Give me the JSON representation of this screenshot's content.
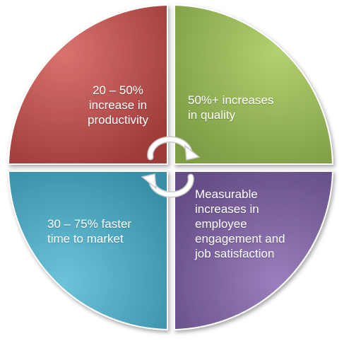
{
  "quadrants": [
    {
      "id": "productivity",
      "lines": [
        "20 – 50%",
        "increase in",
        "productivity"
      ],
      "color": "#C0504D",
      "color_light": "#D9736F",
      "color_dark": "#9E3B39"
    },
    {
      "id": "quality",
      "lines": [
        "50%+ increases",
        "in quality"
      ],
      "color": "#9BBB59",
      "color_light": "#B3D16F",
      "color_dark": "#7E9D45"
    },
    {
      "id": "time-to-market",
      "lines": [
        "30 – 75% faster",
        "time to market"
      ],
      "color": "#4BACC6",
      "color_light": "#6CC3DA",
      "color_dark": "#3890A8"
    },
    {
      "id": "engagement",
      "lines": [
        "Measurable",
        "increases in",
        "employee",
        "engagement and",
        "job satisfaction"
      ],
      "color": "#8064A2",
      "color_light": "#9A7FBC",
      "color_dark": "#654D86"
    }
  ],
  "cycle_arrows": {
    "color": "#FFFFFF",
    "stroke": "#C9C9C9"
  }
}
